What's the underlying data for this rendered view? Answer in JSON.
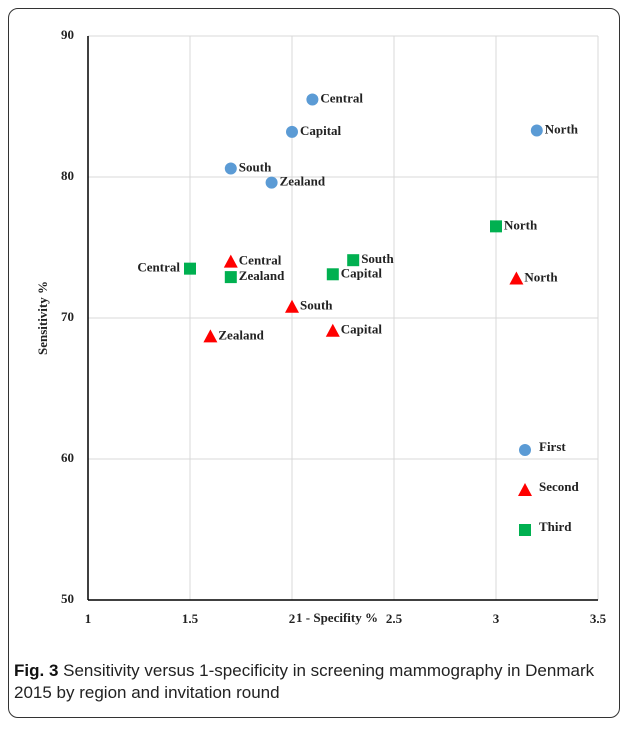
{
  "chart_data": {
    "type": "scatter",
    "x_label": "1 - Specifity %",
    "y_label": "Sensitivity %",
    "xlim": [
      1,
      3.5
    ],
    "xticks": [
      1,
      1.5,
      2,
      2.5,
      3,
      3.5
    ],
    "ylim": [
      50,
      90
    ],
    "yticks": [
      50,
      60,
      70,
      80,
      90
    ],
    "grid": true,
    "legend": "lower right",
    "series": [
      {
        "name": "First",
        "color": "#5b9bd5",
        "marker": "circle",
        "point_labels": [
          "Central",
          "Capital",
          "South",
          "Zealand",
          "North"
        ],
        "x": [
          2.1,
          2.0,
          1.7,
          1.9,
          3.2
        ],
        "values": [
          85.5,
          83.2,
          80.6,
          79.6,
          83.3
        ]
      },
      {
        "name": "Second",
        "color": "#ff0000",
        "marker": "triangle",
        "point_labels": [
          "Central",
          "South",
          "Zealand",
          "Capital",
          "North"
        ],
        "x": [
          1.7,
          2.0,
          1.6,
          2.2,
          3.1
        ],
        "values": [
          74.0,
          70.8,
          68.7,
          69.1,
          72.8
        ]
      },
      {
        "name": "Third",
        "color": "#00b050",
        "marker": "square",
        "point_labels": [
          "Central",
          "Zealand",
          "Capital",
          "South",
          "North"
        ],
        "x": [
          1.5,
          1.7,
          2.2,
          2.3,
          3.0
        ],
        "values": [
          73.5,
          72.9,
          73.1,
          74.1,
          76.5
        ]
      }
    ]
  },
  "caption": {
    "label": "Fig. 3",
    "text": "Sensitivity versus 1-specificity in screening mammography in Denmark 2015 by region and invitation round"
  }
}
